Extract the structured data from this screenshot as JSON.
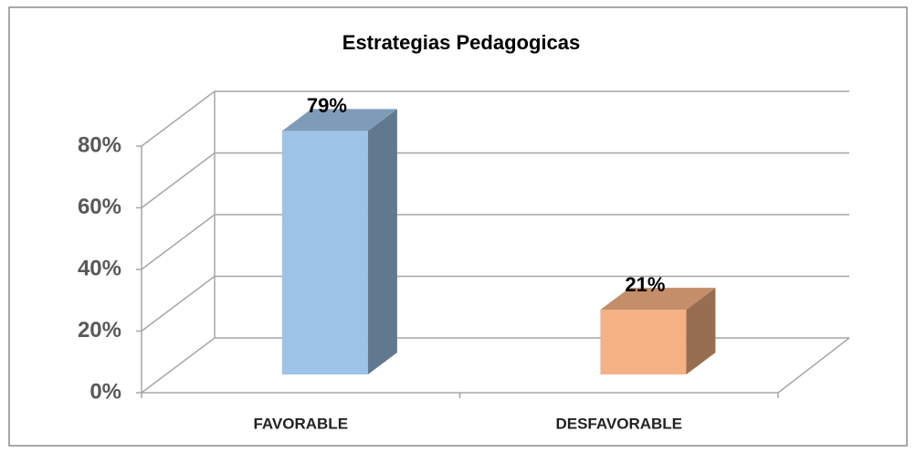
{
  "chart_data": {
    "type": "bar3d",
    "title": "Estrategias Pedagogicas",
    "categories": [
      "FAVORABLE",
      "DESFAVORABLE"
    ],
    "values": [
      79,
      21
    ],
    "value_labels": [
      "79%",
      "21%"
    ],
    "colors": [
      "#9dc3e6",
      "#f4b183"
    ],
    "ylim": [
      0,
      80
    ],
    "yticks": [
      {
        "value": 0,
        "label": "0%"
      },
      {
        "value": 20,
        "label": "20%"
      },
      {
        "value": 40,
        "label": "40%"
      },
      {
        "value": 60,
        "label": "60%"
      },
      {
        "value": 80,
        "label": "80%"
      }
    ],
    "grid": true
  }
}
